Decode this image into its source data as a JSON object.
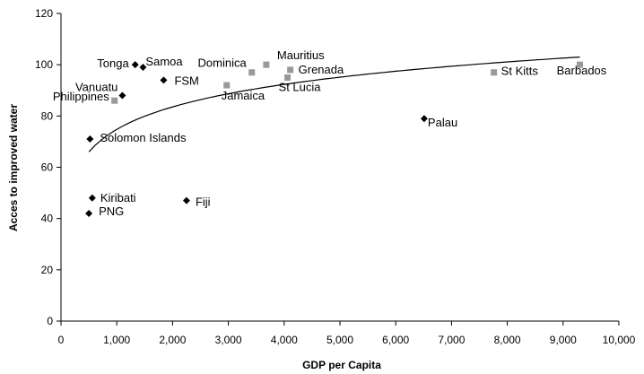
{
  "chart_data": {
    "type": "scatter",
    "title": "",
    "xlabel": "GDP per Capita",
    "ylabel": "Acces to improved water",
    "xlim": [
      0,
      10000
    ],
    "ylim": [
      0,
      120
    ],
    "x_ticks": [
      0,
      1000,
      2000,
      3000,
      4000,
      5000,
      6000,
      7000,
      8000,
      9000,
      10000
    ],
    "x_tick_labels": [
      "0",
      "1,000",
      "2,000",
      "3,000",
      "4,000",
      "5,000",
      "6,000",
      "7,000",
      "8,000",
      "9,000",
      "10,000"
    ],
    "y_ticks": [
      0,
      20,
      40,
      60,
      80,
      100,
      120
    ],
    "y_tick_labels": [
      "0",
      "20",
      "40",
      "60",
      "80",
      "100",
      "120"
    ],
    "grid": false,
    "legend": "none",
    "colors": {
      "diamond": "#000000",
      "square": "#999999",
      "trend": "#000000"
    },
    "series": [
      {
        "marker": "diamond",
        "points": [
          {
            "label": "Tonga",
            "x": 1330,
            "y": 100
          },
          {
            "label": "Samoa",
            "x": 1470,
            "y": 99
          },
          {
            "label": "Vanuatu",
            "x": 1100,
            "y": 88
          },
          {
            "label": "FSM",
            "x": 1840,
            "y": 94
          },
          {
            "label": "Solomon Islands",
            "x": 520,
            "y": 71
          },
          {
            "label": "Kiribati",
            "x": 560,
            "y": 48
          },
          {
            "label": "PNG",
            "x": 500,
            "y": 42
          },
          {
            "label": "Fiji",
            "x": 2250,
            "y": 47
          },
          {
            "label": "Palau",
            "x": 6510,
            "y": 79
          }
        ]
      },
      {
        "marker": "square",
        "points": [
          {
            "label": "Philippines",
            "x": 960,
            "y": 86
          },
          {
            "label": "Jamaica",
            "x": 2970,
            "y": 92
          },
          {
            "label": "Dominica",
            "x": 3420,
            "y": 97
          },
          {
            "label": "Mauritius",
            "x": 3680,
            "y": 100
          },
          {
            "label": "Grenada",
            "x": 4110,
            "y": 98
          },
          {
            "label": "St Lucia",
            "x": 4060,
            "y": 95
          },
          {
            "label": "St Kitts",
            "x": 7760,
            "y": 97
          },
          {
            "label": "Barbados",
            "x": 9300,
            "y": 100
          }
        ]
      }
    ],
    "trendline": {
      "type": "logarithmic",
      "x_range": [
        500,
        9300
      ],
      "points": [
        {
          "x": 500,
          "y": 66
        },
        {
          "x": 9300,
          "y": 103
        }
      ]
    }
  }
}
